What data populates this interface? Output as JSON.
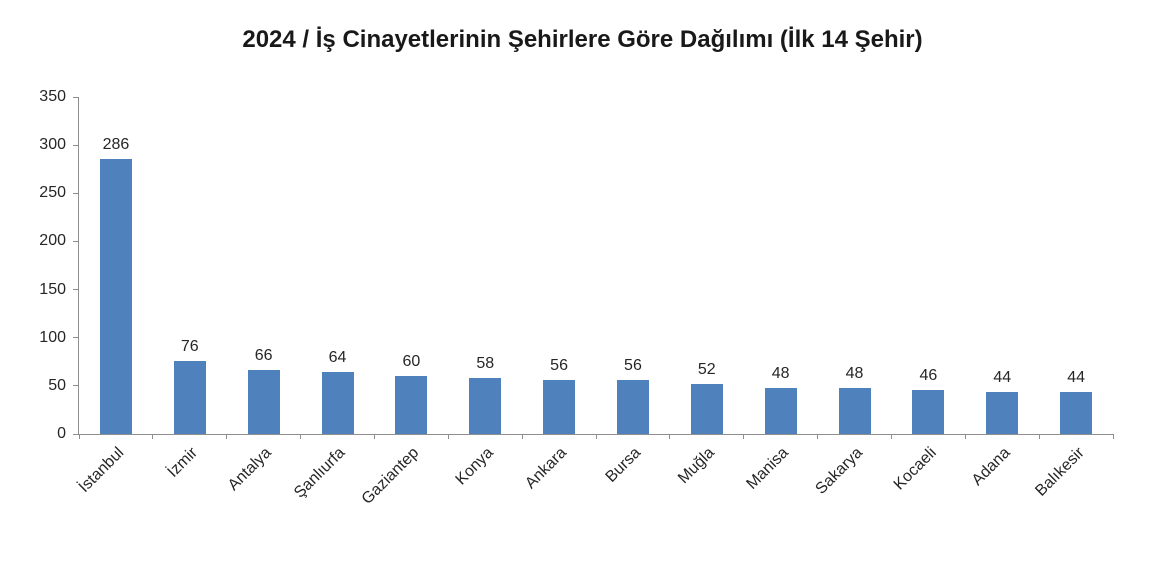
{
  "chart_data": {
    "type": "bar",
    "title": "2024 / İş Cinayetlerinin Şehirlere Göre Dağılımı (İlk 14 Şehir)",
    "categories": [
      "İstanbul",
      "İzmir",
      "Antalya",
      "Şanlıurfa",
      "Gaziantep",
      "Konya",
      "Ankara",
      "Bursa",
      "Muğla",
      "Manisa",
      "Sakarya",
      "Kocaeli",
      "Adana",
      "Balıkesir"
    ],
    "values": [
      286,
      76,
      66,
      64,
      60,
      58,
      56,
      56,
      52,
      48,
      48,
      46,
      44,
      44
    ],
    "xlabel": "",
    "ylabel": "",
    "ylim": [
      0,
      350
    ],
    "y_ticks": [
      0,
      50,
      100,
      150,
      200,
      250,
      300,
      350
    ],
    "grid": false,
    "legend": false,
    "data_labels_shown": true,
    "bar_color": "#4F81BD",
    "axis_color": "#8E8E8E",
    "label_color": "#262626"
  }
}
